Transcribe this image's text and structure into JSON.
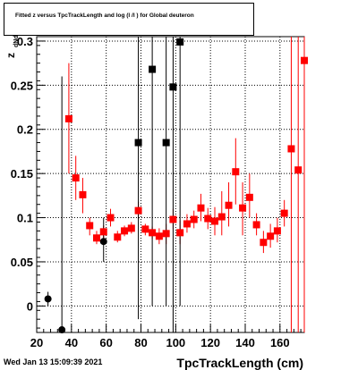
{
  "canvas": {
    "title": "Fitted  z      versus TpcTrackLength and log   (l /l ) for Global deuteron",
    "datestamp": "Wed Jan 13 15:09:39 2021"
  },
  "chart_data": {
    "type": "scatter",
    "title": "Fitted  z      versus TpcTrackLength and log   (l /l ) for Global deuteron",
    "xlabel": "TpcTrackLength (cm)",
    "ylabel": "z",
    "xlim": [
      20,
      174
    ],
    "ylim": [
      -0.03,
      0.305
    ],
    "x_ticks": [
      20,
      40,
      60,
      80,
      100,
      120,
      140,
      160
    ],
    "y_ticks": [
      0,
      0.05,
      0.1,
      0.15,
      0.2,
      0.25,
      0.3
    ],
    "y_tick_labels": [
      "0",
      "0.05",
      "0.1",
      "0.15",
      "0.2",
      "0.25",
      "0.3"
    ],
    "grid": true,
    "series": [
      {
        "marker": "square",
        "color": "#ff0000",
        "points": [
          {
            "x": 38.5,
            "y": 0.212,
            "ylo": 0.15,
            "yhi": 0.275
          },
          {
            "x": 42.5,
            "y": 0.145,
            "ylo": 0.12,
            "yhi": 0.17
          },
          {
            "x": 46.5,
            "y": 0.126,
            "ylo": 0.105,
            "yhi": 0.145
          },
          {
            "x": 50.5,
            "y": 0.091,
            "ylo": 0.08,
            "yhi": 0.1
          },
          {
            "x": 54.5,
            "y": 0.077,
            "ylo": 0.07,
            "yhi": 0.085
          },
          {
            "x": 58.5,
            "y": 0.084,
            "ylo": 0.077,
            "yhi": 0.091
          },
          {
            "x": 62.5,
            "y": 0.1,
            "ylo": 0.09,
            "yhi": 0.11
          },
          {
            "x": 66.5,
            "y": 0.078,
            "ylo": 0.072,
            "yhi": 0.085
          },
          {
            "x": 70.5,
            "y": 0.085,
            "ylo": 0.079,
            "yhi": 0.091
          },
          {
            "x": 74.5,
            "y": 0.088,
            "ylo": 0.082,
            "yhi": 0.095
          },
          {
            "x": 78.5,
            "y": 0.108,
            "ylo": 0.098,
            "yhi": 0.118
          },
          {
            "x": 82.5,
            "y": 0.087,
            "ylo": 0.08,
            "yhi": 0.093
          },
          {
            "x": 86.5,
            "y": 0.083,
            "ylo": 0.076,
            "yhi": 0.09
          },
          {
            "x": 90.5,
            "y": 0.079,
            "ylo": 0.07,
            "yhi": 0.088
          },
          {
            "x": 94.5,
            "y": 0.082,
            "ylo": 0.07,
            "yhi": 0.093
          },
          {
            "x": 98.5,
            "y": 0.098,
            "ylo": 0.087,
            "yhi": 0.11
          },
          {
            "x": 102.5,
            "y": 0.083,
            "ylo": 0.07,
            "yhi": 0.097
          },
          {
            "x": 106.5,
            "y": 0.093,
            "ylo": 0.083,
            "yhi": 0.104
          },
          {
            "x": 110.5,
            "y": 0.098,
            "ylo": 0.088,
            "yhi": 0.108
          },
          {
            "x": 114.5,
            "y": 0.111,
            "ylo": 0.096,
            "yhi": 0.127
          },
          {
            "x": 118.5,
            "y": 0.099,
            "ylo": 0.087,
            "yhi": 0.111
          },
          {
            "x": 122.5,
            "y": 0.096,
            "ylo": 0.08,
            "yhi": 0.112
          },
          {
            "x": 126.5,
            "y": 0.101,
            "ylo": 0.08,
            "yhi": 0.13
          },
          {
            "x": 130.5,
            "y": 0.114,
            "ylo": 0.09,
            "yhi": 0.14
          },
          {
            "x": 134.5,
            "y": 0.152,
            "ylo": 0.115,
            "yhi": 0.19
          },
          {
            "x": 138.5,
            "y": 0.111,
            "ylo": 0.08,
            "yhi": 0.14
          },
          {
            "x": 142.5,
            "y": 0.123,
            "ylo": 0.1,
            "yhi": 0.15
          },
          {
            "x": 146.5,
            "y": 0.092,
            "ylo": 0.08,
            "yhi": 0.105
          },
          {
            "x": 150.5,
            "y": 0.072,
            "ylo": 0.06,
            "yhi": 0.085
          },
          {
            "x": 154.5,
            "y": 0.079,
            "ylo": 0.066,
            "yhi": 0.093
          },
          {
            "x": 158.5,
            "y": 0.085,
            "ylo": 0.072,
            "yhi": 0.1
          },
          {
            "x": 162.5,
            "y": 0.105,
            "ylo": 0.09,
            "yhi": 0.12
          },
          {
            "x": 166.5,
            "y": 0.178,
            "ylo": -0.03,
            "yhi": 0.305
          },
          {
            "x": 170.5,
            "y": 0.154,
            "ylo": -0.03,
            "yhi": 0.305
          },
          {
            "x": 174.0,
            "y": 0.278,
            "ylo": -0.03,
            "yhi": 0.305
          }
        ]
      },
      {
        "marker": "square",
        "color": "#000000",
        "points": [
          {
            "x": 78.5,
            "y": 0.185,
            "ylo": -0.015,
            "yhi": 0.305
          },
          {
            "x": 86.5,
            "y": 0.268,
            "ylo": 0.0,
            "yhi": 0.305
          },
          {
            "x": 94.5,
            "y": 0.185,
            "ylo": 0.0,
            "yhi": 0.305
          },
          {
            "x": 98.5,
            "y": 0.248,
            "ylo": -0.03,
            "yhi": 0.305
          },
          {
            "x": 102.5,
            "y": 0.299,
            "ylo": 0.0,
            "yhi": 0.305
          }
        ]
      },
      {
        "marker": "circle",
        "color": "#000000",
        "points": [
          {
            "x": 26.5,
            "y": 0.008,
            "ylo": 0.0,
            "yhi": 0.016
          },
          {
            "x": 34.5,
            "y": -0.027,
            "ylo": -0.03,
            "yhi": 0.26
          },
          {
            "x": 58.5,
            "y": 0.073,
            "ylo": 0.05,
            "yhi": 0.1
          }
        ]
      }
    ]
  }
}
